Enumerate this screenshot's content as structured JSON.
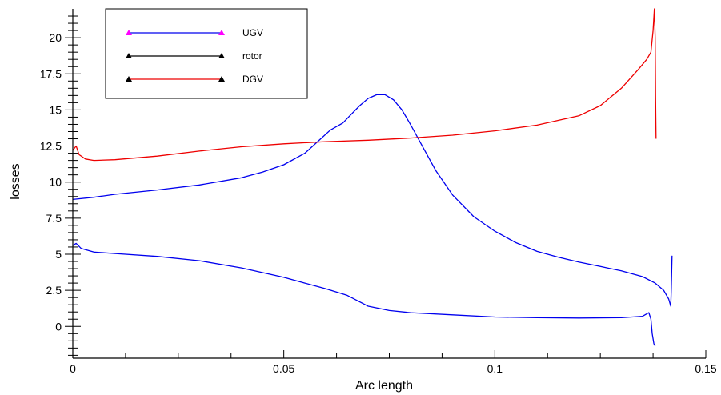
{
  "chart_data": {
    "type": "line",
    "title": "",
    "xlabel": "Arc length",
    "ylabel": "losses",
    "xlim": [
      0,
      0.15
    ],
    "ylim": [
      -2.2,
      22.0
    ],
    "grid": false,
    "legend_position": "top-left",
    "x_ticks": [
      {
        "value": 0,
        "label": "0"
      },
      {
        "value": 0.05,
        "label": "0.05"
      },
      {
        "value": 0.1,
        "label": "0.1"
      },
      {
        "value": 0.15,
        "label": "0.15"
      }
    ],
    "y_ticks": [
      {
        "value": 0,
        "label": "0"
      },
      {
        "value": 2.5,
        "label": "2.5"
      },
      {
        "value": 5,
        "label": "5"
      },
      {
        "value": 7.5,
        "label": "7.5"
      },
      {
        "value": 10,
        "label": "10"
      },
      {
        "value": 12.5,
        "label": "12.5"
      },
      {
        "value": 15,
        "label": "15"
      },
      {
        "value": 17.5,
        "label": "17.5"
      },
      {
        "value": 20,
        "label": "20"
      }
    ],
    "series": [
      {
        "name": "UGV",
        "color": "#0000ee",
        "marker_color": "#ff00ff",
        "segments": [
          [
            [
              0.0,
              8.8
            ],
            [
              0.005,
              8.95
            ],
            [
              0.01,
              9.15
            ],
            [
              0.02,
              9.45
            ],
            [
              0.03,
              9.8
            ],
            [
              0.04,
              10.3
            ],
            [
              0.045,
              10.7
            ],
            [
              0.05,
              11.2
            ],
            [
              0.055,
              12.0
            ],
            [
              0.058,
              12.8
            ],
            [
              0.061,
              13.6
            ],
            [
              0.064,
              14.1
            ],
            [
              0.066,
              14.7
            ],
            [
              0.068,
              15.3
            ],
            [
              0.07,
              15.8
            ],
            [
              0.072,
              16.05
            ],
            [
              0.074,
              16.05
            ],
            [
              0.076,
              15.7
            ],
            [
              0.078,
              15.0
            ],
            [
              0.08,
              14.0
            ],
            [
              0.083,
              12.4
            ],
            [
              0.086,
              10.8
            ],
            [
              0.09,
              9.1
            ],
            [
              0.095,
              7.6
            ],
            [
              0.1,
              6.6
            ],
            [
              0.105,
              5.8
            ],
            [
              0.11,
              5.2
            ],
            [
              0.115,
              4.8
            ],
            [
              0.12,
              4.45
            ],
            [
              0.125,
              4.15
            ],
            [
              0.13,
              3.85
            ],
            [
              0.135,
              3.45
            ],
            [
              0.138,
              3.0
            ],
            [
              0.14,
              2.5
            ],
            [
              0.1412,
              1.9
            ],
            [
              0.1417,
              1.4
            ],
            [
              0.1418,
              2.5
            ],
            [
              0.142,
              4.9
            ]
          ],
          [
            [
              0.0,
              5.6
            ],
            [
              0.0008,
              5.75
            ],
            [
              0.002,
              5.4
            ],
            [
              0.005,
              5.15
            ],
            [
              0.01,
              5.05
            ],
            [
              0.02,
              4.85
            ],
            [
              0.03,
              4.55
            ],
            [
              0.04,
              4.05
            ],
            [
              0.05,
              3.4
            ],
            [
              0.055,
              3.0
            ],
            [
              0.06,
              2.6
            ],
            [
              0.065,
              2.15
            ],
            [
              0.07,
              1.4
            ],
            [
              0.075,
              1.1
            ],
            [
              0.08,
              0.95
            ],
            [
              0.09,
              0.8
            ],
            [
              0.1,
              0.65
            ],
            [
              0.11,
              0.6
            ],
            [
              0.12,
              0.58
            ],
            [
              0.13,
              0.6
            ],
            [
              0.135,
              0.7
            ],
            [
              0.1365,
              0.95
            ],
            [
              0.137,
              0.5
            ],
            [
              0.1373,
              -0.5
            ],
            [
              0.1377,
              -1.2
            ],
            [
              0.138,
              -1.35
            ]
          ]
        ]
      },
      {
        "name": "rotor",
        "color": "#000000",
        "marker_color": "#000000",
        "segments": []
      },
      {
        "name": "DGV",
        "color": "#ee0000",
        "marker_color": "#000000",
        "segments": [
          [
            [
              0.0,
              12.2
            ],
            [
              0.0008,
              12.5
            ],
            [
              0.0015,
              11.9
            ],
            [
              0.003,
              11.6
            ],
            [
              0.005,
              11.5
            ],
            [
              0.01,
              11.55
            ],
            [
              0.02,
              11.8
            ],
            [
              0.03,
              12.15
            ],
            [
              0.04,
              12.45
            ],
            [
              0.05,
              12.65
            ],
            [
              0.06,
              12.8
            ],
            [
              0.07,
              12.9
            ],
            [
              0.08,
              13.05
            ],
            [
              0.09,
              13.25
            ],
            [
              0.1,
              13.55
            ],
            [
              0.11,
              13.95
            ],
            [
              0.12,
              14.6
            ],
            [
              0.125,
              15.3
            ],
            [
              0.13,
              16.5
            ],
            [
              0.134,
              17.8
            ],
            [
              0.136,
              18.5
            ],
            [
              0.137,
              19.0
            ],
            [
              0.1375,
              20.5
            ],
            [
              0.1378,
              22.0
            ],
            [
              0.138,
              20.0
            ],
            [
              0.1381,
              16.0
            ],
            [
              0.1382,
              13.0
            ]
          ]
        ]
      }
    ]
  }
}
